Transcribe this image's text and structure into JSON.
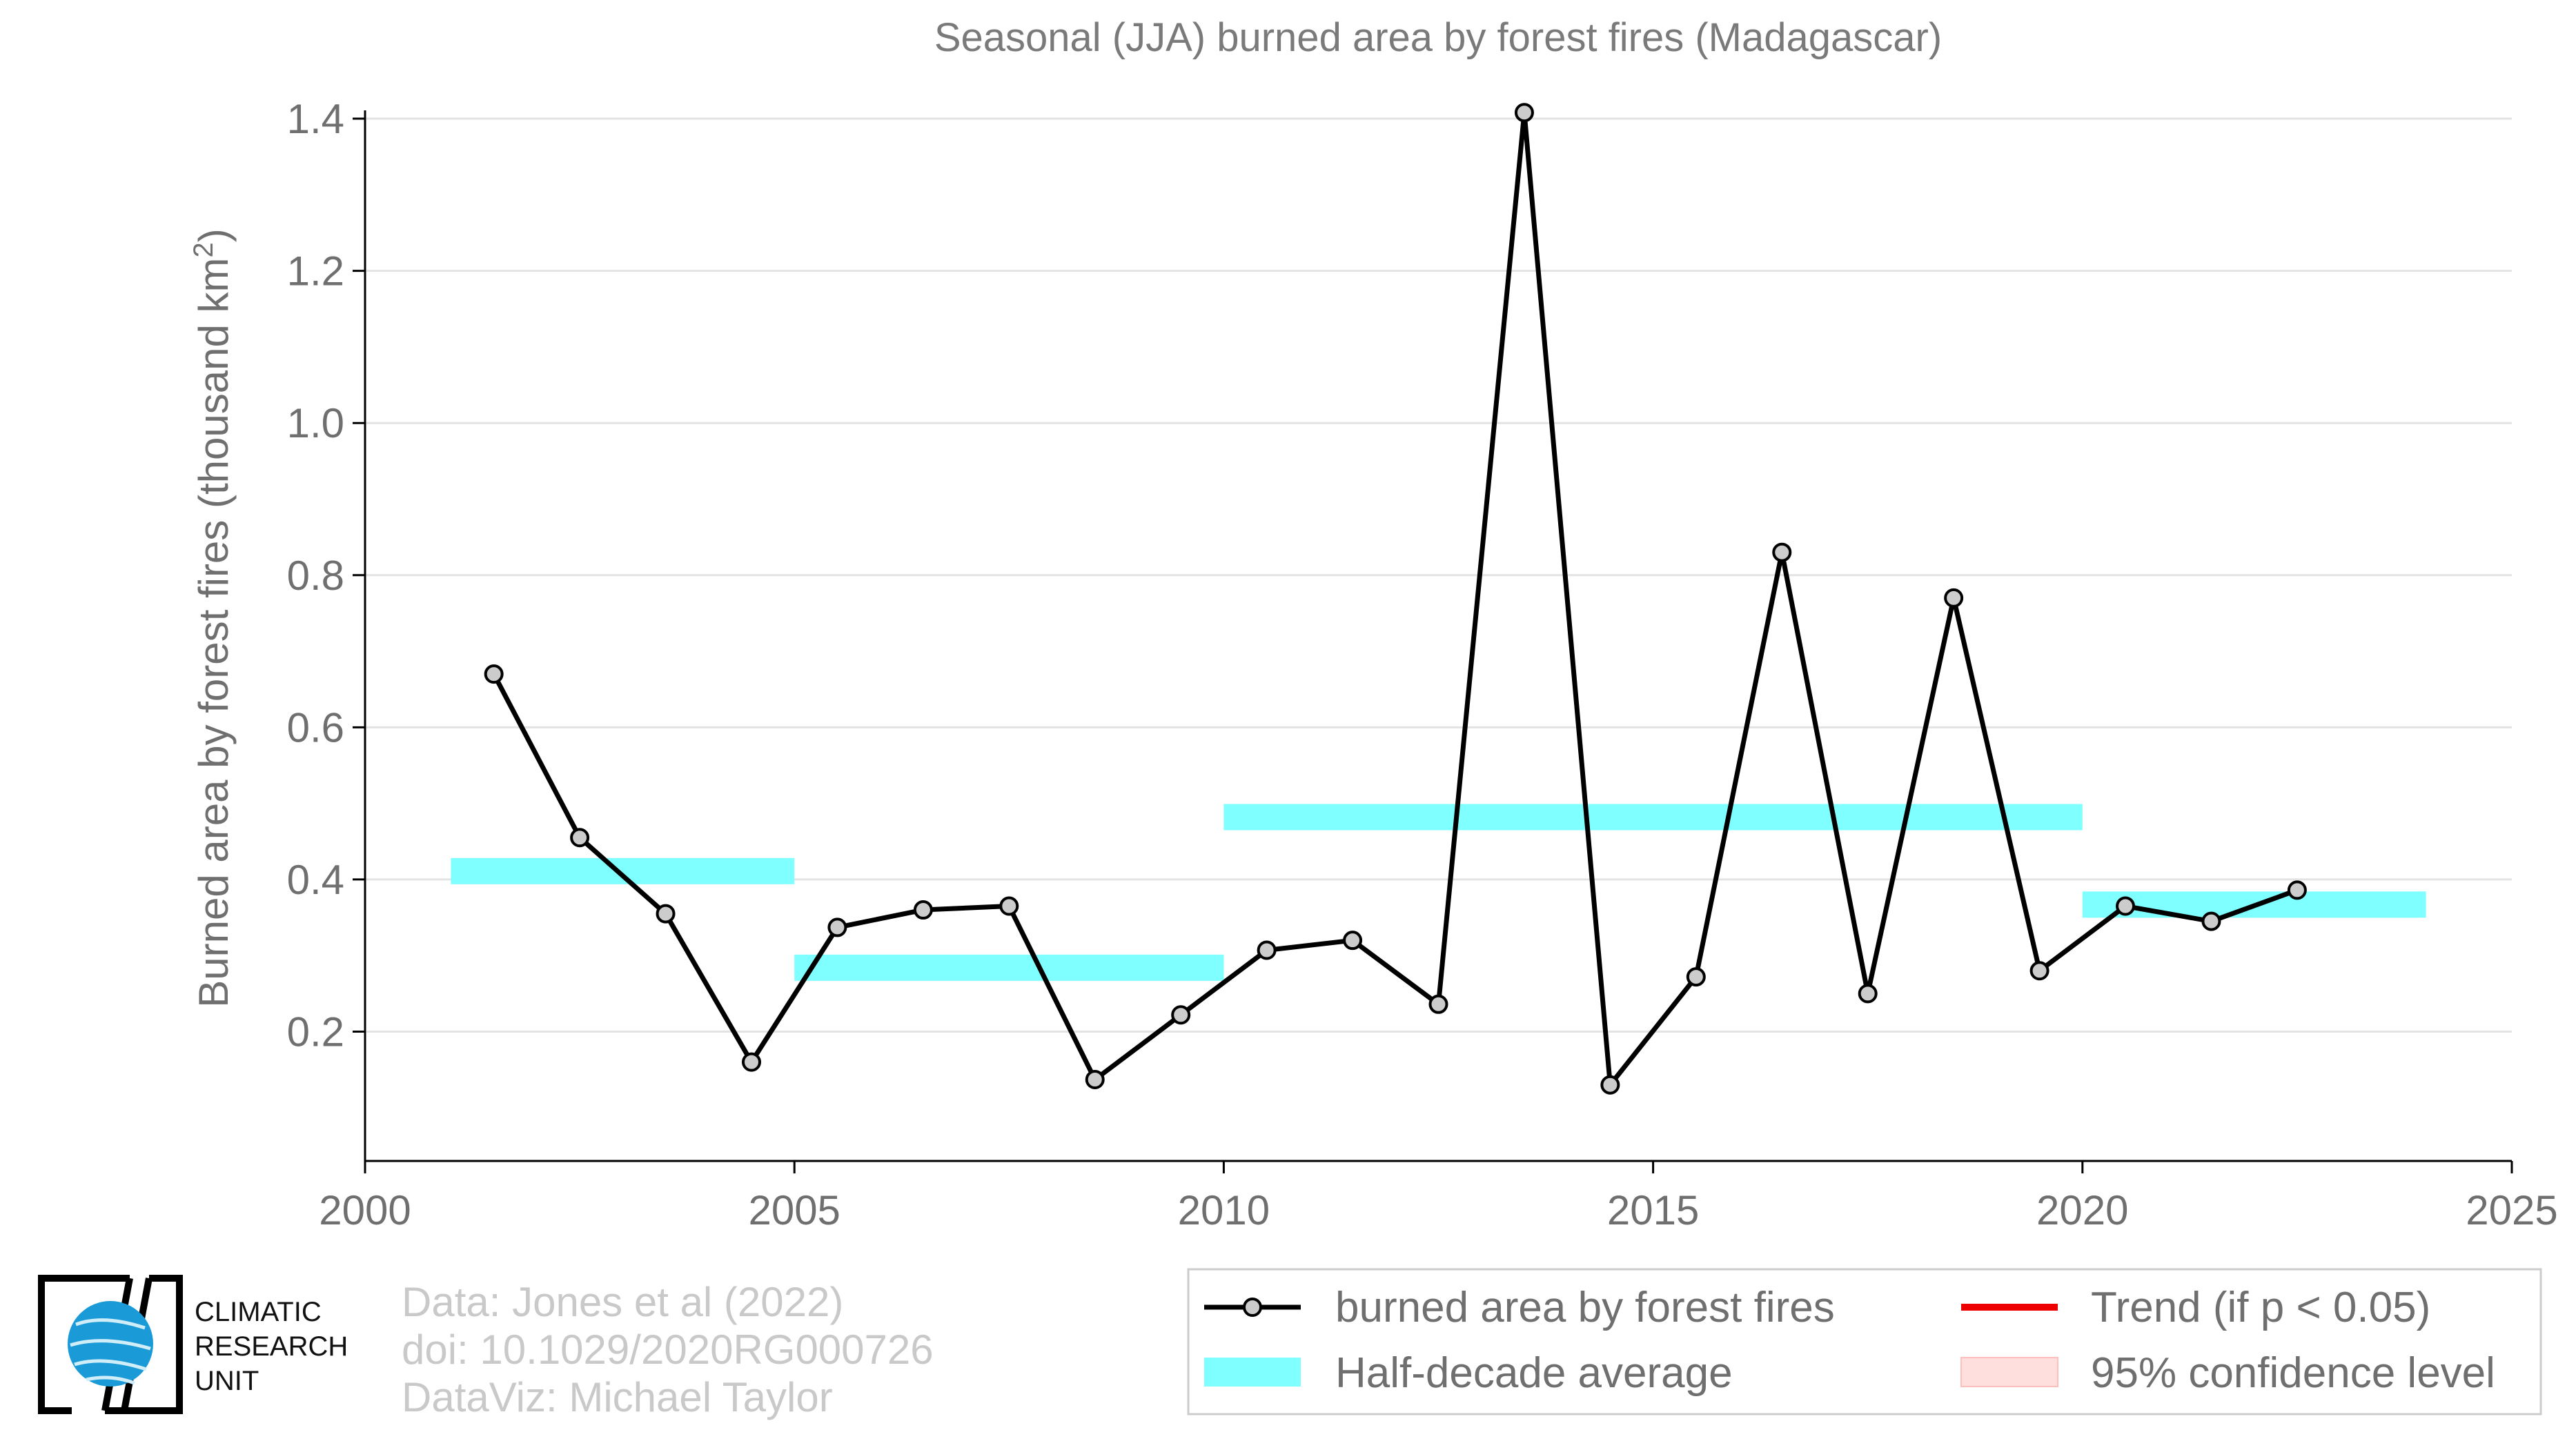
{
  "chart_data": {
    "type": "line",
    "title": "Seasonal (JJA) burned area by forest fires (Madagascar)",
    "xlabel": "",
    "ylabel": "Burned area by forest fires (thousand km2)",
    "ylabel_main": "Burned area by forest fires (thousand km",
    "ylabel_sup": "2",
    "ylabel_close": ")",
    "xlim": [
      2000,
      2025
    ],
    "ylim": [
      0.03,
      1.42
    ],
    "xticks": [
      2000,
      2005,
      2010,
      2015,
      2020,
      2025
    ],
    "xtick_labels": [
      "2000",
      "2005",
      "2010",
      "2015",
      "2020",
      "2025"
    ],
    "yticks": [
      0.2,
      0.4,
      0.6,
      0.8,
      1.0,
      1.2,
      1.4
    ],
    "ytick_labels": [
      "0.2",
      "0.4",
      "0.6",
      "0.8",
      "1.0",
      "1.2",
      "1.4"
    ],
    "grid": true,
    "series": [
      {
        "name": "burned area by forest fires",
        "color": "#000000",
        "marker_fill": "#cccccc",
        "x": [
          2001.5,
          2002.5,
          2003.5,
          2004.5,
          2005.5,
          2006.5,
          2007.5,
          2008.5,
          2009.5,
          2010.5,
          2011.5,
          2012.5,
          2013.5,
          2014.5,
          2015.5,
          2016.5,
          2017.5,
          2018.5,
          2019.5,
          2020.5,
          2021.5,
          2022.5
        ],
        "values": [
          0.67,
          0.455,
          0.355,
          0.16,
          0.337,
          0.36,
          0.365,
          0.137,
          0.222,
          0.307,
          0.32,
          0.236,
          1.408,
          0.13,
          0.272,
          0.83,
          0.25,
          0.77,
          0.28,
          0.365,
          0.345,
          0.386
        ]
      }
    ],
    "half_decade_averages": {
      "name": "Half-decade average",
      "color": "#7fffff",
      "segments": [
        {
          "x_start": 2001,
          "x_end": 2005,
          "value": 0.411
        },
        {
          "x_start": 2005,
          "x_end": 2010,
          "value": 0.284
        },
        {
          "x_start": 2010,
          "x_end": 2020,
          "value": 0.482
        },
        {
          "x_start": 2020,
          "x_end": 2024,
          "value": 0.367
        }
      ]
    },
    "legend": {
      "placement": "bottom-right",
      "items": [
        {
          "label": "burned area by forest fires",
          "kind": "line-marker",
          "color": "#000000"
        },
        {
          "label": "Trend (if p < 0.05)",
          "kind": "line",
          "color": "#ee0000"
        },
        {
          "label": "Half-decade average",
          "kind": "patch",
          "color": "#7fffff"
        },
        {
          "label": "95% confidence level",
          "kind": "patch",
          "color": "#ffdede"
        }
      ]
    }
  },
  "credits": {
    "line1": "Data: Jones et al (2022)",
    "line2": "doi: 10.1029/2020RG000726",
    "line3": "DataViz: Michael Taylor"
  },
  "logo": {
    "line1": "CLIMATIC",
    "line2": "RESEARCH",
    "line3": "UNIT",
    "globe_color": "#1a9ad6"
  }
}
